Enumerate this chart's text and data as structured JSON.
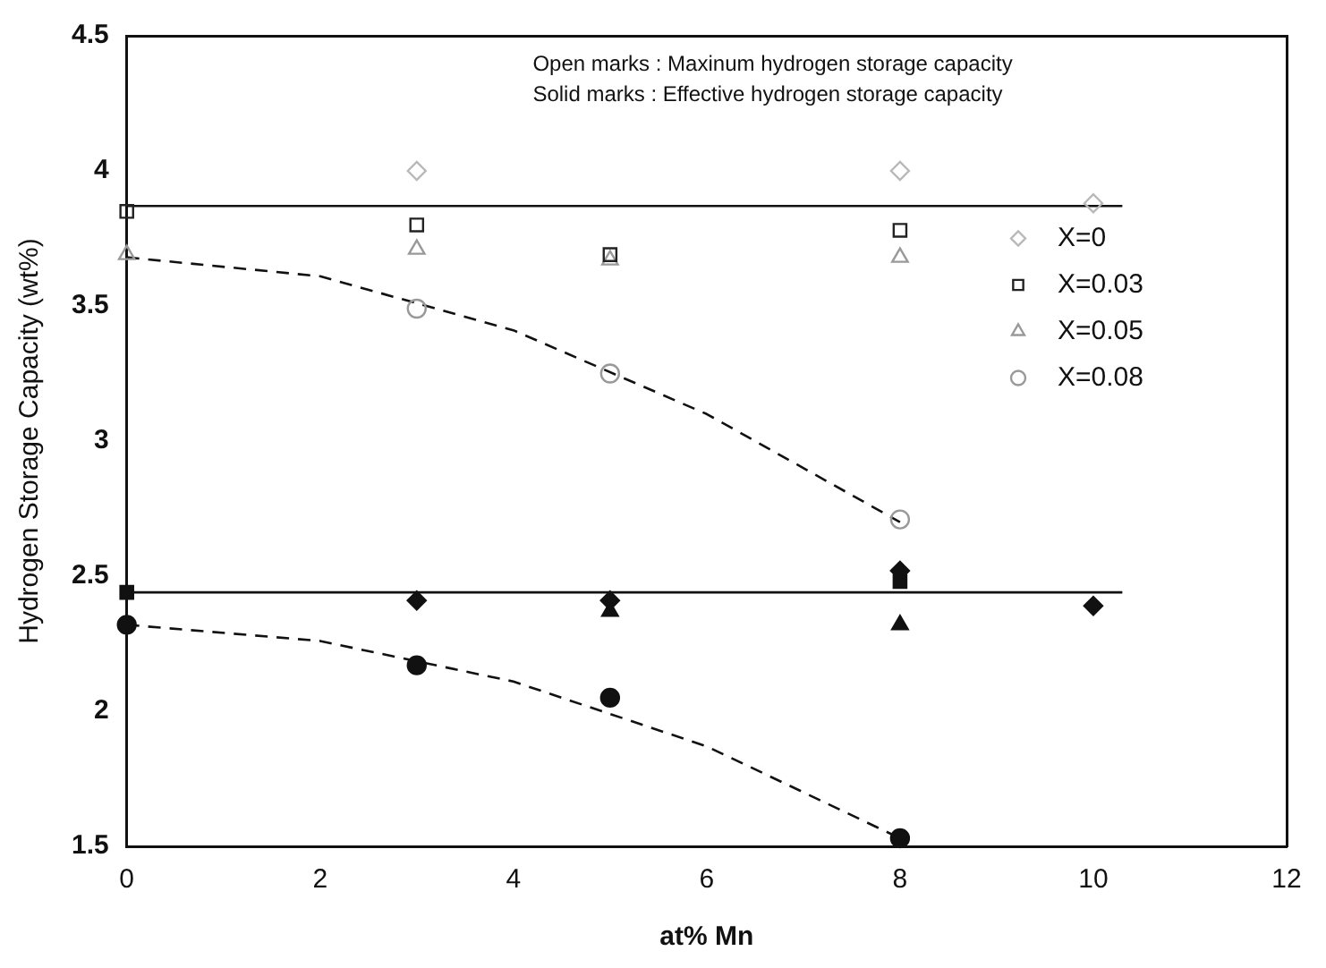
{
  "chart_data": {
    "type": "scatter",
    "xlabel": "at% Mn",
    "ylabel": "Hydrogen Storage Capacity (wt%)",
    "annotations": [
      "Open marks : Maxinum hydrogen storage capacity",
      "Solid marks : Effective hydrogen storage capacity"
    ],
    "xlim": [
      0,
      12
    ],
    "xticks": [
      0,
      2,
      4,
      6,
      8,
      10,
      12
    ],
    "ylim": [
      1.5,
      4.5
    ],
    "yticks": [
      1.5,
      2,
      2.5,
      3,
      3.5,
      4,
      4.5
    ],
    "grid": false,
    "legend": "right",
    "series": [
      {
        "name": "X=0",
        "color": "#b8b8b8",
        "marker": "diamond",
        "x": [
          3,
          8,
          10
        ],
        "values": [
          4.0,
          4.0,
          3.88
        ]
      },
      {
        "name": "X=0.03",
        "color": "#222222",
        "marker": "square",
        "x": [
          0,
          3,
          5,
          8
        ],
        "values": [
          3.85,
          3.8,
          3.69,
          3.78
        ]
      },
      {
        "name": "X=0.05",
        "color": "#999999",
        "marker": "triangle",
        "x": [
          0,
          3,
          5,
          8
        ],
        "values": [
          3.69,
          3.71,
          3.67,
          3.68
        ]
      },
      {
        "name": "X=0.08",
        "color": "#999999",
        "marker": "circle",
        "x": [
          3,
          5,
          8
        ],
        "values": [
          3.49,
          3.25,
          2.71
        ]
      },
      {
        "color": "#111111",
        "marker": "diamond",
        "x": [
          3,
          5,
          8,
          10
        ],
        "values": [
          2.41,
          2.41,
          2.52,
          2.39
        ]
      },
      {
        "color": "#111111",
        "marker": "square",
        "x": [
          0,
          3,
          5,
          8
        ],
        "values": [
          2.44,
          null,
          null,
          2.48
        ]
      },
      {
        "color": "#111111",
        "marker": "triangle",
        "x": [
          5,
          8
        ],
        "values": [
          2.37,
          2.32
        ]
      },
      {
        "color": "#111111",
        "marker": "circle",
        "x": [
          0,
          3,
          5,
          8
        ],
        "values": [
          2.32,
          2.17,
          2.05,
          1.53
        ]
      },
      {
        "type": "line",
        "color": "#111111",
        "marker": "none",
        "line_style": "solid",
        "x": [
          0,
          10.3
        ],
        "values": [
          3.87,
          3.87
        ]
      },
      {
        "type": "line",
        "color": "#111111",
        "marker": "none",
        "line_style": "solid",
        "x": [
          0,
          10.3
        ],
        "values": [
          2.44,
          2.44
        ]
      },
      {
        "type": "line",
        "color": "#111111",
        "marker": "none",
        "line_style": "dashed",
        "x": [
          0,
          2,
          4,
          6,
          8
        ],
        "values": [
          3.68,
          3.61,
          3.41,
          3.1,
          2.7
        ]
      },
      {
        "type": "line",
        "color": "#111111",
        "marker": "none",
        "line_style": "dashed",
        "x": [
          0,
          2,
          4,
          6,
          8
        ],
        "values": [
          2.32,
          2.26,
          2.11,
          1.87,
          1.53
        ]
      }
    ]
  }
}
